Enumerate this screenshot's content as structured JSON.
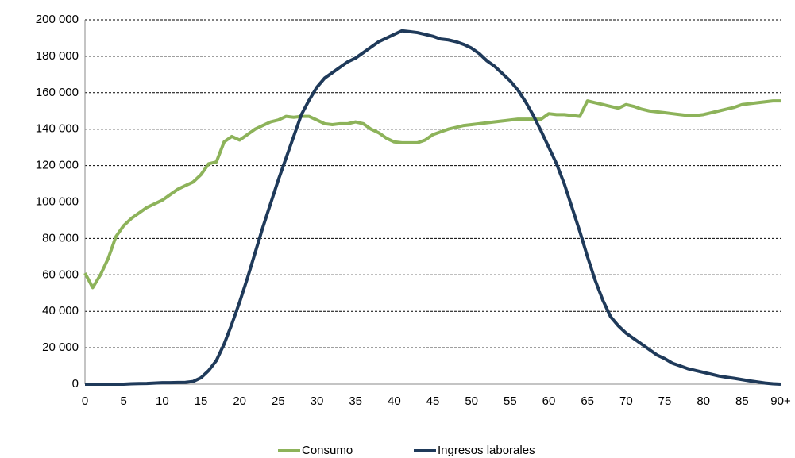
{
  "chart_data": {
    "type": "line",
    "categories": [
      "0",
      null,
      null,
      null,
      null,
      "5",
      null,
      null,
      null,
      null,
      "10",
      null,
      null,
      null,
      null,
      "15",
      null,
      null,
      null,
      null,
      "20",
      null,
      null,
      null,
      null,
      "25",
      null,
      null,
      null,
      null,
      "30",
      null,
      null,
      null,
      null,
      "35",
      null,
      null,
      null,
      null,
      "40",
      null,
      null,
      null,
      null,
      "45",
      null,
      null,
      null,
      null,
      "50",
      null,
      null,
      null,
      null,
      "55",
      null,
      null,
      null,
      null,
      "60",
      null,
      null,
      null,
      null,
      "65",
      null,
      null,
      null,
      null,
      "70",
      null,
      null,
      null,
      null,
      "75",
      null,
      null,
      null,
      null,
      "80",
      null,
      null,
      null,
      null,
      "85",
      null,
      null,
      null,
      null,
      "90+"
    ],
    "series": [
      {
        "name": "Consumo",
        "color": "#8db35a",
        "values": [
          61000,
          53000,
          60000,
          69000,
          81000,
          87000,
          91000,
          94000,
          97000,
          99000,
          101000,
          104000,
          107000,
          109000,
          111000,
          115000,
          121000,
          122000,
          133000,
          136000,
          134000,
          137000,
          140000,
          142000,
          144000,
          145000,
          147000,
          146500,
          147000,
          147000,
          145000,
          143000,
          142500,
          143000,
          143000,
          144000,
          143000,
          140000,
          138000,
          135000,
          133000,
          132500,
          132500,
          132500,
          134000,
          137000,
          138500,
          140000,
          141000,
          142000,
          142500,
          143000,
          143500,
          144000,
          144500,
          145000,
          145500,
          145500,
          145500,
          145500,
          148500,
          148000,
          148000,
          147500,
          147000,
          155500,
          154500,
          153500,
          152500,
          151500,
          153500,
          152500,
          151000,
          150000,
          149500,
          149000,
          148500,
          148000,
          147500,
          147500,
          148000,
          149000,
          150000,
          151000,
          152000,
          153500,
          154000,
          154500,
          155000,
          155500,
          155500
        ]
      },
      {
        "name": "Ingresos laborales",
        "color": "#1f3a5a",
        "values": [
          0,
          0,
          0,
          0,
          0,
          0,
          200,
          300,
          400,
          600,
          800,
          800,
          900,
          1000,
          1500,
          3500,
          7500,
          13000,
          22000,
          33000,
          45000,
          58000,
          72000,
          86000,
          99000,
          112000,
          124000,
          136000,
          148000,
          156000,
          163000,
          168000,
          171000,
          174000,
          177000,
          179000,
          182000,
          185000,
          188000,
          190000,
          192000,
          194000,
          193500,
          193000,
          192000,
          191000,
          189500,
          189000,
          188000,
          186500,
          184500,
          181500,
          177500,
          174500,
          170500,
          166500,
          161500,
          155000,
          147500,
          139000,
          130000,
          121000,
          110000,
          97000,
          84000,
          70000,
          57000,
          46000,
          37000,
          32000,
          28000,
          25000,
          22000,
          19000,
          16000,
          14000,
          11500,
          10000,
          8500,
          7500,
          6500,
          5500,
          4500,
          3800,
          3200,
          2500,
          1800,
          1200,
          600,
          200,
          0
        ]
      }
    ],
    "ylim": [
      0,
      200000
    ],
    "yticks": [
      0,
      {
        "value": 20000,
        "label": "20 000"
      },
      {
        "value": 40000,
        "label": "40 000"
      },
      {
        "value": 60000,
        "label": "60 000"
      },
      {
        "value": 80000,
        "label": "80 000"
      },
      {
        "value": 100000,
        "label": "100 000"
      },
      {
        "value": 120000,
        "label": "120 000"
      },
      {
        "value": 140000,
        "label": "140 000"
      },
      {
        "value": 160000,
        "label": "160 000"
      },
      {
        "value": 180000,
        "label": "180 000"
      },
      {
        "value": 200000,
        "label": "200 000"
      }
    ],
    "grid": true,
    "legend": "bottom"
  }
}
